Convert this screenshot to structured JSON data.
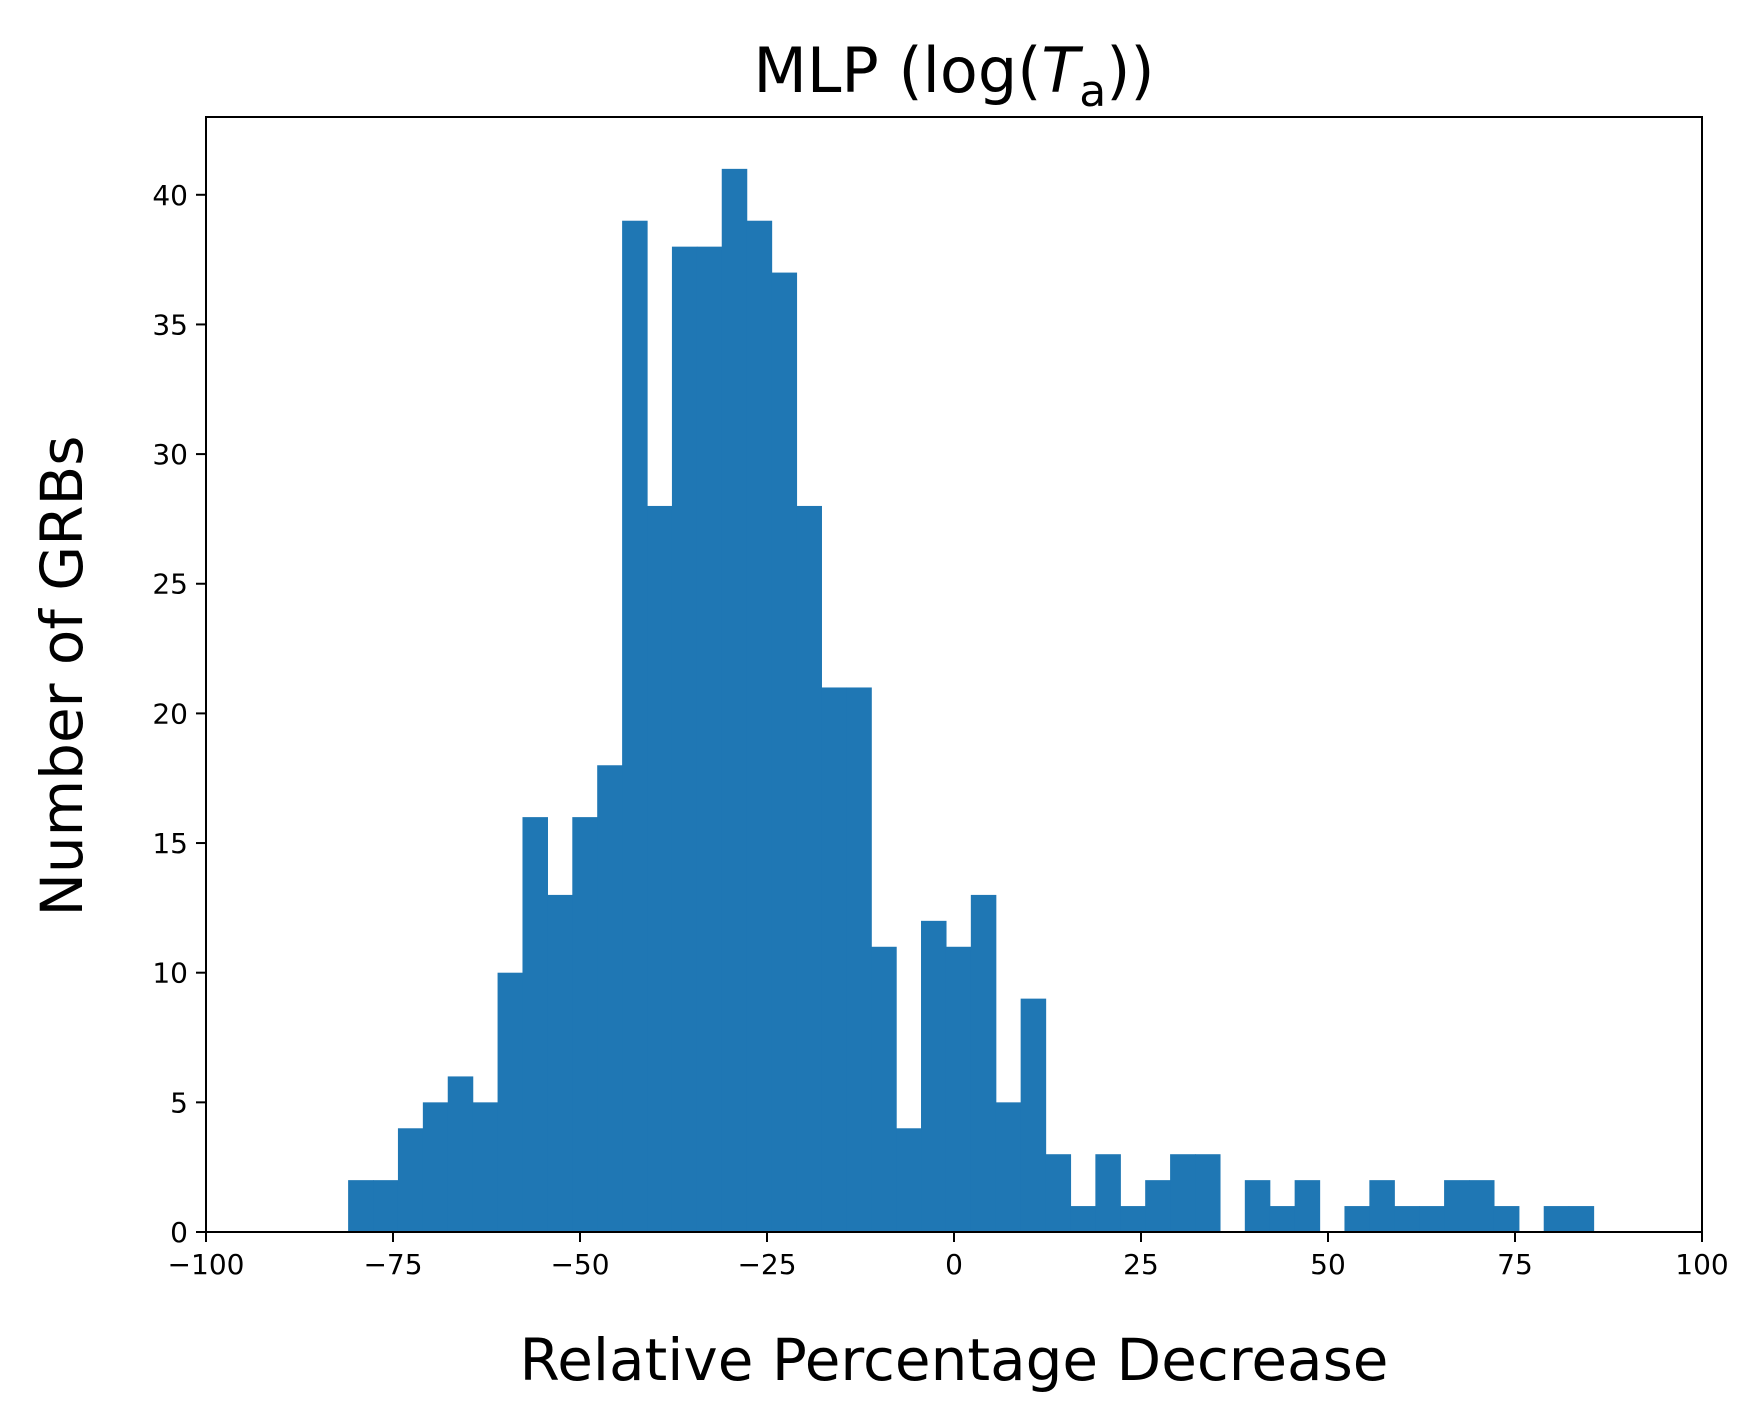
{
  "chart_data": {
    "type": "bar",
    "title": {
      "prefix": "MLP (log(",
      "symbol": "T",
      "subscript": "a",
      "suffix": "))"
    },
    "xlabel": "Relative Percentage Decrease",
    "ylabel": "Number of GRBs",
    "xlim": [
      -100,
      100
    ],
    "ylim": [
      0,
      43
    ],
    "x_ticks": [
      -100,
      -75,
      -50,
      -25,
      0,
      25,
      50,
      75,
      100
    ],
    "x_tick_labels": [
      "−100",
      "−75",
      "−50",
      "−25",
      "0",
      "25",
      "50",
      "75",
      "100"
    ],
    "y_ticks": [
      0,
      5,
      10,
      15,
      20,
      25,
      30,
      35,
      40
    ],
    "y_tick_labels": [
      "0",
      "5",
      "10",
      "15",
      "20",
      "25",
      "30",
      "35",
      "40"
    ],
    "bins": {
      "start": -81.0,
      "width": 3.33,
      "counts": [
        2,
        2,
        4,
        5,
        6,
        5,
        10,
        16,
        13,
        16,
        18,
        39,
        28,
        38,
        38,
        41,
        39,
        37,
        28,
        21,
        21,
        11,
        4,
        12,
        11,
        13,
        5,
        9,
        3,
        1,
        3,
        1,
        2,
        3,
        3,
        0,
        2,
        1,
        2,
        0,
        1,
        2,
        1,
        1,
        2,
        2,
        1,
        0,
        1,
        1
      ]
    },
    "color": "#1f77b4",
    "grid": false,
    "legend": "none"
  }
}
